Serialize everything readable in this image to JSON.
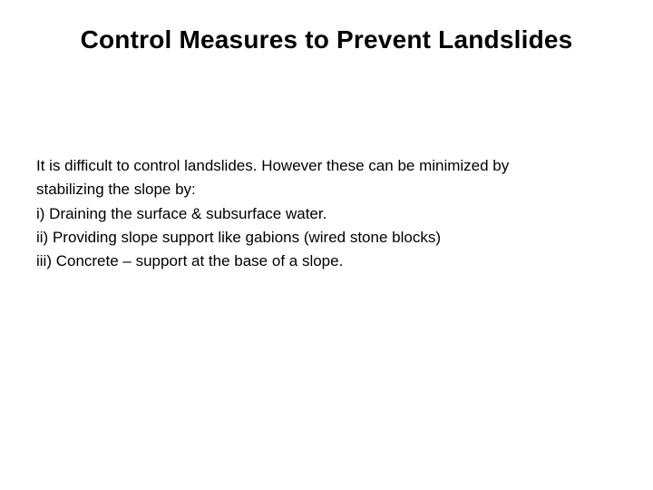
{
  "slide": {
    "title": "Control Measures to Prevent Landslides",
    "body": {
      "line1": "It is difficult to control landslides. However these can be minimized by",
      "line2": "stabilizing the slope by:",
      "line3": "i) Draining the surface & subsurface water.",
      "line4": "ii) Providing slope support like gabions (wired stone blocks)",
      "line5": "iii) Concrete – support at the base of a slope."
    }
  },
  "styling": {
    "background_color": "#ffffff",
    "text_color": "#000000",
    "title_fontsize": 28,
    "title_fontweight": "bold",
    "body_fontsize": 17,
    "body_lineheight": 1.55,
    "font_family": "Arial"
  }
}
